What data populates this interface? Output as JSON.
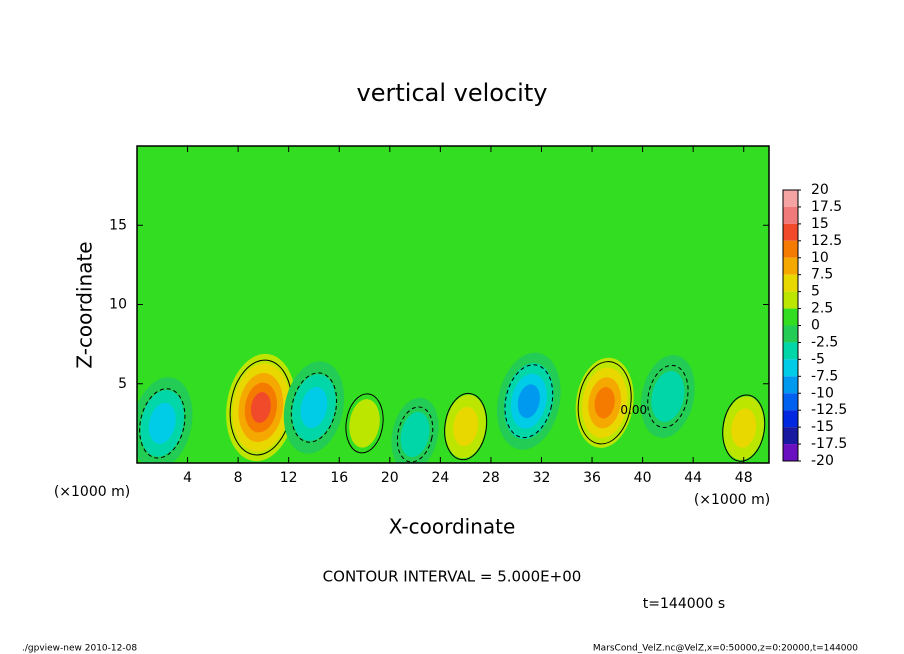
{
  "chart_data": {
    "type": "contour",
    "title": "vertical velocity",
    "x_label": "X-coordinate",
    "y_label": "Z-coordinate",
    "x_unit": "(×1000 m)",
    "y_unit": "(×1000 m)",
    "xlim": [
      0,
      50
    ],
    "ylim": [
      0,
      20
    ],
    "xticks": [
      4,
      8,
      12,
      16,
      20,
      24,
      28,
      32,
      36,
      40,
      44,
      48
    ],
    "yticks": [
      5,
      10,
      15
    ],
    "colorbar_levels": [
      20,
      17.5,
      15,
      12.5,
      10,
      7.5,
      5,
      2.5,
      0,
      -2.5,
      -5,
      -7.5,
      -10,
      -12.5,
      -15,
      -17.5,
      -20
    ],
    "colorbar_colors": [
      "#f5a3a3",
      "#f07a7a",
      "#f04a2a",
      "#f57a00",
      "#f5a800",
      "#e8d800",
      "#bce600",
      "#33dd22",
      "#22cc55",
      "#00d6a8",
      "#00cce8",
      "#0099f0",
      "#0060f0",
      "#0028e0",
      "#1818a0",
      "#6a10c0"
    ],
    "features": [
      {
        "x": 9.8,
        "z": 3.5,
        "value": 14
      },
      {
        "x": 37,
        "z": 3.8,
        "value": 10.5
      },
      {
        "x": 26,
        "z": 2.3,
        "value": 6
      },
      {
        "x": 48,
        "z": 2.2,
        "value": 6
      },
      {
        "x": 18,
        "z": 2.5,
        "value": 4
      },
      {
        "x": 2,
        "z": 2.5,
        "value": -7
      },
      {
        "x": 14,
        "z": 3.5,
        "value": -7
      },
      {
        "x": 31,
        "z": 3.9,
        "value": -8
      },
      {
        "x": 42,
        "z": 4.2,
        "value": -5
      },
      {
        "x": 22,
        "z": 1.8,
        "value": -3
      }
    ],
    "annotation": "0.00",
    "annotation_x": 39.3,
    "annotation_z": 3.3,
    "contour_interval": "CONTOUR INTERVAL = 5.000E+00",
    "time_label": "t=144000 s",
    "footer_left": "./gpview-new  2010-12-08",
    "footer_right": "MarsCond_VelZ.nc@VelZ,x=0:50000,z=0:20000,t=144000"
  }
}
